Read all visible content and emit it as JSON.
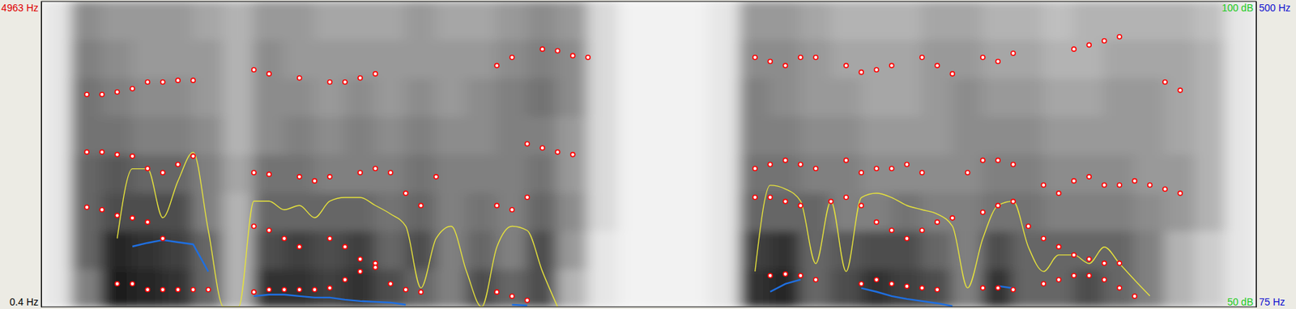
{
  "chart_data": {
    "type": "spectrogram",
    "xlim": [
      0,
      1
    ],
    "ylim": [
      0.4,
      4963
    ],
    "yticks": [
      {
        "value": 0.4,
        "label": "0.4 Hz"
      },
      {
        "value": 4963,
        "label": "4963 Hz"
      }
    ],
    "y2lim": [
      75,
      500
    ],
    "y2ticks": [
      {
        "value": 75,
        "label": "75 Hz"
      },
      {
        "value": 500,
        "label": "500 Hz"
      }
    ],
    "y3lim": [
      50,
      100
    ],
    "y3ticks": [
      {
        "value": 50,
        "label": "50 dB"
      },
      {
        "value": 100,
        "label": "100 dB"
      }
    ],
    "tick_labels": "y",
    "grid": false,
    "x": [
      0,
      0.0125,
      0.025,
      0.0375,
      0.05,
      0.0625,
      0.075,
      0.0875,
      0.1,
      0.1125,
      0.125,
      0.1375,
      0.15,
      0.1625,
      0.175,
      0.1875,
      0.2,
      0.2125,
      0.225,
      0.2375,
      0.25,
      0.2625,
      0.275,
      0.2875,
      0.3,
      0.3125,
      0.325,
      0.3375,
      0.35,
      0.3625,
      0.375,
      0.3875,
      0.4,
      0.4125,
      0.425,
      0.4375,
      0.45,
      0.4625,
      0.475,
      0.4875,
      0.5,
      0.5125,
      0.525,
      0.5375,
      0.55,
      0.5625,
      0.575,
      0.5875,
      0.6,
      0.6125,
      0.625,
      0.6375,
      0.65,
      0.6625,
      0.675,
      0.6875,
      0.7,
      0.7125,
      0.725,
      0.7375,
      0.75,
      0.7625,
      0.775,
      0.7875,
      0.8,
      0.8125,
      0.825,
      0.8375,
      0.85,
      0.8625,
      0.875,
      0.8875,
      0.9,
      0.9125,
      0.925,
      0.9375,
      0.95,
      0.9625,
      0.975,
      0.9875,
      1
    ],
    "series": [
      {
        "type": "scatter",
        "color": "#ff0000",
        "marker": "circle",
        "line_style": "none",
        "values": [
          null,
          null,
          null,
          null,
          null,
          375,
          375,
          281,
          281,
          281,
          281,
          281,
          null,
          null,
          241,
          281,
          281,
          281,
          281,
          308,
          442,
          575,
          709,
          375,
          281,
          241,
          null,
          null,
          null,
          null,
          241,
          174,
          107,
          null,
          null,
          null,
          null,
          null,
          null,
          null,
          null,
          null,
          null,
          null,
          null,
          null,
          null,
          null,
          508,
          535,
          508,
          442,
          null,
          null,
          375,
          442,
          375,
          335,
          308,
          281,
          null,
          null,
          308,
          308,
          281,
          null,
          375,
          442,
          508,
          508,
          442,
          308,
          174,
          null,
          null,
          null,
          null,
          null,
          null,
          null,
          null
        ]
      },
      {
        "type": "scatter",
        "color": "#ff0000",
        "marker": "circle",
        "line_style": "none",
        "values": [
          null,
          null,
          null,
          1619,
          1579,
          1485,
          1445,
          1378,
          1111,
          null,
          null,
          null,
          null,
          null,
          1311,
          1244,
          1111,
          977,
          null,
          1111,
          977,
          776,
          642,
          null,
          1846,
          1646,
          null,
          null,
          null,
          null,
          1646,
          1579,
          1780,
          null,
          null,
          null,
          null,
          null,
          null,
          null,
          null,
          null,
          null,
          null,
          null,
          null,
          null,
          1780,
          1780,
          1713,
          1646,
          null,
          1713,
          1780,
          1646,
          1378,
          1244,
          1111,
          1244,
          1378,
          1445,
          null,
          1539,
          1646,
          1713,
          1311,
          1111,
          977,
          843,
          776,
          709,
          709,
          null,
          null,
          null,
          null,
          null,
          null,
          null,
          null,
          null
        ]
      },
      {
        "type": "scatter",
        "color": "#ff0000",
        "marker": "circle",
        "line_style": "none",
        "values": [
          null,
          null,
          null,
          2515,
          2515,
          2475,
          2449,
          2248,
          2181,
          2315,
          2449,
          null,
          null,
          null,
          2181,
          2154,
          null,
          2114,
          2047,
          2114,
          null,
          2181,
          2248,
          2181,
          null,
          null,
          2114,
          null,
          null,
          null,
          null,
          null,
          2649,
          2582,
          2515,
          2475,
          null,
          null,
          null,
          null,
          null,
          null,
          null,
          null,
          null,
          null,
          null,
          2248,
          2315,
          2382,
          2315,
          2248,
          null,
          2382,
          2181,
          2248,
          2248,
          2315,
          2181,
          null,
          null,
          2181,
          2382,
          2382,
          2315,
          null,
          1980,
          1846,
          2047,
          2114,
          1980,
          1980,
          2047,
          1980,
          1913,
          1846,
          null,
          null,
          null,
          null,
          null
        ]
      },
      {
        "type": "scatter",
        "color": "#ff0000",
        "marker": "circle",
        "line_style": "none",
        "values": [
          null,
          null,
          null,
          3452,
          3452,
          3492,
          3546,
          3653,
          3653,
          3680,
          3680,
          null,
          null,
          null,
          3853,
          3787,
          null,
          3720,
          null,
          3653,
          3653,
          3720,
          3787,
          null,
          null,
          null,
          null,
          null,
          null,
          null,
          3920,
          4054,
          null,
          4188,
          4161,
          4081,
          4054,
          null,
          null,
          null,
          null,
          null,
          null,
          null,
          null,
          null,
          null,
          4054,
          3987,
          3920,
          4054,
          4054,
          null,
          3920,
          3813,
          3853,
          3920,
          null,
          4054,
          3920,
          3787,
          null,
          4054,
          3987,
          4121,
          null,
          null,
          null,
          4188,
          4255,
          4322,
          4389,
          null,
          null,
          3653,
          3519,
          null,
          null,
          null,
          null,
          null
        ]
      },
      {
        "type": "line",
        "axis": "y2",
        "color": "#1f6fe0",
        "marker": "none",
        "line_style": "solid",
        "values": [
          null,
          null,
          null,
          null,
          null,
          null,
          159,
          164,
          168,
          165,
          162,
          124,
          null,
          null,
          90,
          92,
          92,
          90,
          88,
          88,
          85,
          83,
          82,
          81,
          78,
          null,
          null,
          null,
          null,
          null,
          null,
          78,
          77,
          null,
          null,
          null,
          null,
          null,
          null,
          null,
          null,
          null,
          null,
          null,
          null,
          null,
          null,
          null,
          96,
          107,
          113,
          null,
          101,
          null,
          101,
          96,
          90,
          86,
          83,
          80,
          76,
          null,
          null,
          104,
          101,
          null,
          null,
          null,
          null,
          null,
          null,
          null,
          null,
          null,
          null,
          null,
          null,
          null,
          null,
          null,
          null
        ]
      },
      {
        "type": "line",
        "axis": "y3",
        "color": "#e6e23c",
        "marker": "none",
        "line_style": "solid",
        "values": [
          null,
          null,
          null,
          null,
          null,
          61.2,
          72.6,
          72.6,
          64.6,
          70.6,
          75.3,
          62.5,
          50,
          50,
          67.3,
          67.3,
          65.9,
          66.6,
          64.6,
          67.3,
          67.9,
          67.9,
          66.6,
          65.2,
          63.2,
          53.1,
          61.2,
          63.2,
          55.8,
          50,
          59.8,
          63.2,
          62.5,
          55.8,
          50,
          null,
          null,
          null,
          null,
          null,
          null,
          null,
          null,
          null,
          null,
          null,
          null,
          55.8,
          69.9,
          69.3,
          67.3,
          57.1,
          67.3,
          55.8,
          67.9,
          68.6,
          67.9,
          66.6,
          65.9,
          65.2,
          63.2,
          53.1,
          61.2,
          66.6,
          67.3,
          59.8,
          55.8,
          58.5,
          58.5,
          57.1,
          59.8,
          57.1,
          54.4,
          51.8,
          null,
          null,
          null,
          null,
          null,
          null,
          null
        ]
      }
    ],
    "spectrogram": {
      "z": [
        [
          0.1,
          0.5,
          0.9,
          0.85,
          0.8,
          0.6,
          0.3,
          0.8,
          0.8,
          0.75,
          0.8,
          0.7,
          0.6,
          0.5,
          0.7,
          0.6,
          0.7,
          0.3,
          0.1,
          0.05,
          0.05,
          0.05,
          0.1,
          0.8,
          0.85,
          0.6,
          0.7,
          0.8,
          0.75,
          0.7,
          0.5,
          0.8,
          0.6,
          0.6,
          0.7,
          0.6,
          0.5,
          0.3,
          0.2,
          0.1
        ],
        [
          0.1,
          0.6,
          0.85,
          0.8,
          0.75,
          0.6,
          0.3,
          0.7,
          0.75,
          0.7,
          0.75,
          0.6,
          0.7,
          0.5,
          0.6,
          0.5,
          0.7,
          0.4,
          0.1,
          0.05,
          0.05,
          0.05,
          0.1,
          0.75,
          0.8,
          0.6,
          0.65,
          0.7,
          0.7,
          0.6,
          0.5,
          0.7,
          0.6,
          0.6,
          0.6,
          0.6,
          0.5,
          0.3,
          0.2,
          0.1
        ],
        [
          0.1,
          0.6,
          0.7,
          0.7,
          0.7,
          0.5,
          0.3,
          0.6,
          0.6,
          0.6,
          0.6,
          0.55,
          0.6,
          0.5,
          0.55,
          0.5,
          0.6,
          0.45,
          0.15,
          0.05,
          0.05,
          0.05,
          0.1,
          0.6,
          0.6,
          0.6,
          0.5,
          0.5,
          0.55,
          0.5,
          0.5,
          0.55,
          0.55,
          0.5,
          0.5,
          0.5,
          0.45,
          0.4,
          0.3,
          0.1
        ],
        [
          0.1,
          0.6,
          0.65,
          0.6,
          0.6,
          0.5,
          0.35,
          0.55,
          0.55,
          0.5,
          0.5,
          0.5,
          0.55,
          0.5,
          0.5,
          0.5,
          0.55,
          0.4,
          0.15,
          0.05,
          0.05,
          0.05,
          0.1,
          0.55,
          0.55,
          0.5,
          0.5,
          0.45,
          0.45,
          0.45,
          0.45,
          0.5,
          0.5,
          0.45,
          0.45,
          0.45,
          0.4,
          0.4,
          0.3,
          0.1
        ],
        [
          0.1,
          0.55,
          0.55,
          0.5,
          0.5,
          0.45,
          0.3,
          0.45,
          0.5,
          0.45,
          0.5,
          0.45,
          0.5,
          0.45,
          0.45,
          0.5,
          0.5,
          0.4,
          0.15,
          0.05,
          0.05,
          0.05,
          0.1,
          0.5,
          0.5,
          0.45,
          0.45,
          0.4,
          0.4,
          0.4,
          0.45,
          0.45,
          0.45,
          0.4,
          0.4,
          0.4,
          0.4,
          0.35,
          0.3,
          0.1
        ],
        [
          0.1,
          0.55,
          0.5,
          0.45,
          0.45,
          0.4,
          0.3,
          0.45,
          0.45,
          0.4,
          0.45,
          0.4,
          0.45,
          0.4,
          0.45,
          0.5,
          0.55,
          0.45,
          0.15,
          0.05,
          0.05,
          0.05,
          0.1,
          0.5,
          0.45,
          0.4,
          0.4,
          0.35,
          0.35,
          0.4,
          0.45,
          0.4,
          0.4,
          0.35,
          0.35,
          0.4,
          0.4,
          0.35,
          0.3,
          0.1
        ],
        [
          0.1,
          0.5,
          0.45,
          0.4,
          0.4,
          0.4,
          0.3,
          0.45,
          0.4,
          0.4,
          0.4,
          0.4,
          0.4,
          0.4,
          0.4,
          0.45,
          0.5,
          0.45,
          0.15,
          0.05,
          0.05,
          0.05,
          0.1,
          0.45,
          0.45,
          0.4,
          0.35,
          0.35,
          0.35,
          0.4,
          0.4,
          0.35,
          0.35,
          0.3,
          0.3,
          0.35,
          0.35,
          0.35,
          0.3,
          0.1
        ],
        [
          0.1,
          0.45,
          0.4,
          0.4,
          0.4,
          0.35,
          0.3,
          0.4,
          0.4,
          0.35,
          0.35,
          0.35,
          0.4,
          0.35,
          0.35,
          0.4,
          0.45,
          0.4,
          0.15,
          0.05,
          0.05,
          0.05,
          0.1,
          0.4,
          0.4,
          0.35,
          0.3,
          0.3,
          0.3,
          0.35,
          0.35,
          0.3,
          0.3,
          0.25,
          0.3,
          0.3,
          0.3,
          0.3,
          0.25,
          0.1
        ]
      ]
    }
  }
}
